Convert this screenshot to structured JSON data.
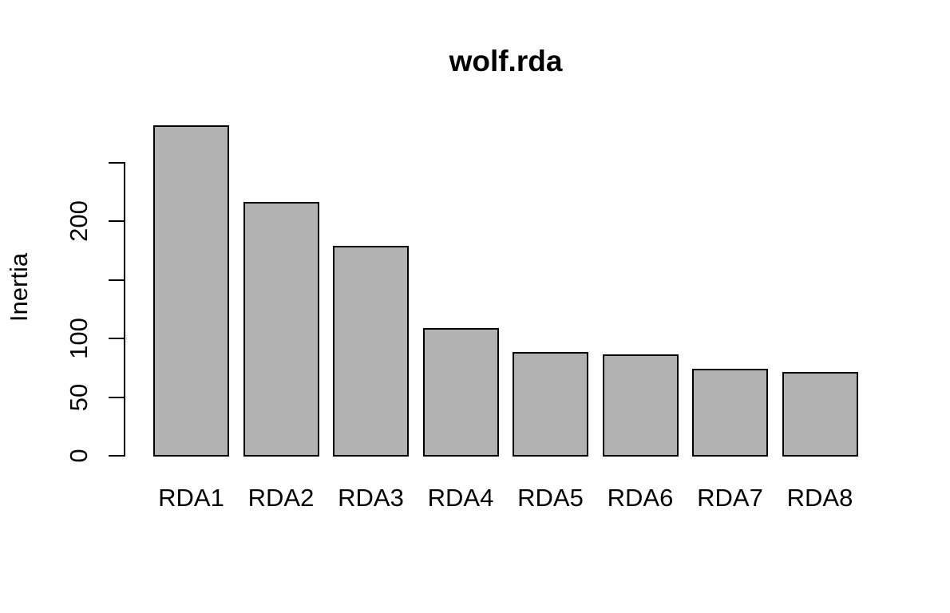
{
  "chart_data": {
    "type": "bar",
    "title": "wolf.rda",
    "xlabel": "",
    "ylabel": "Inertia",
    "categories": [
      "RDA1",
      "RDA2",
      "RDA3",
      "RDA4",
      "RDA5",
      "RDA6",
      "RDA7",
      "RDA8"
    ],
    "values": [
      283,
      217,
      180,
      110,
      89,
      87,
      75,
      72
    ],
    "ylim": [
      0,
      250
    ],
    "yticks": [
      {
        "value": 0,
        "label": "0"
      },
      {
        "value": 50,
        "label": "50"
      },
      {
        "value": 100,
        "label": "100"
      },
      {
        "value": 150,
        "label": ""
      },
      {
        "value": 200,
        "label": "200"
      },
      {
        "value": 250,
        "label": ""
      }
    ],
    "grid": false,
    "legend": "none",
    "colors": {
      "bar_fill": "#b2b2b2",
      "bar_border": "#000000",
      "axis": "#000000",
      "text": "#000000",
      "background": "#ffffff"
    }
  }
}
